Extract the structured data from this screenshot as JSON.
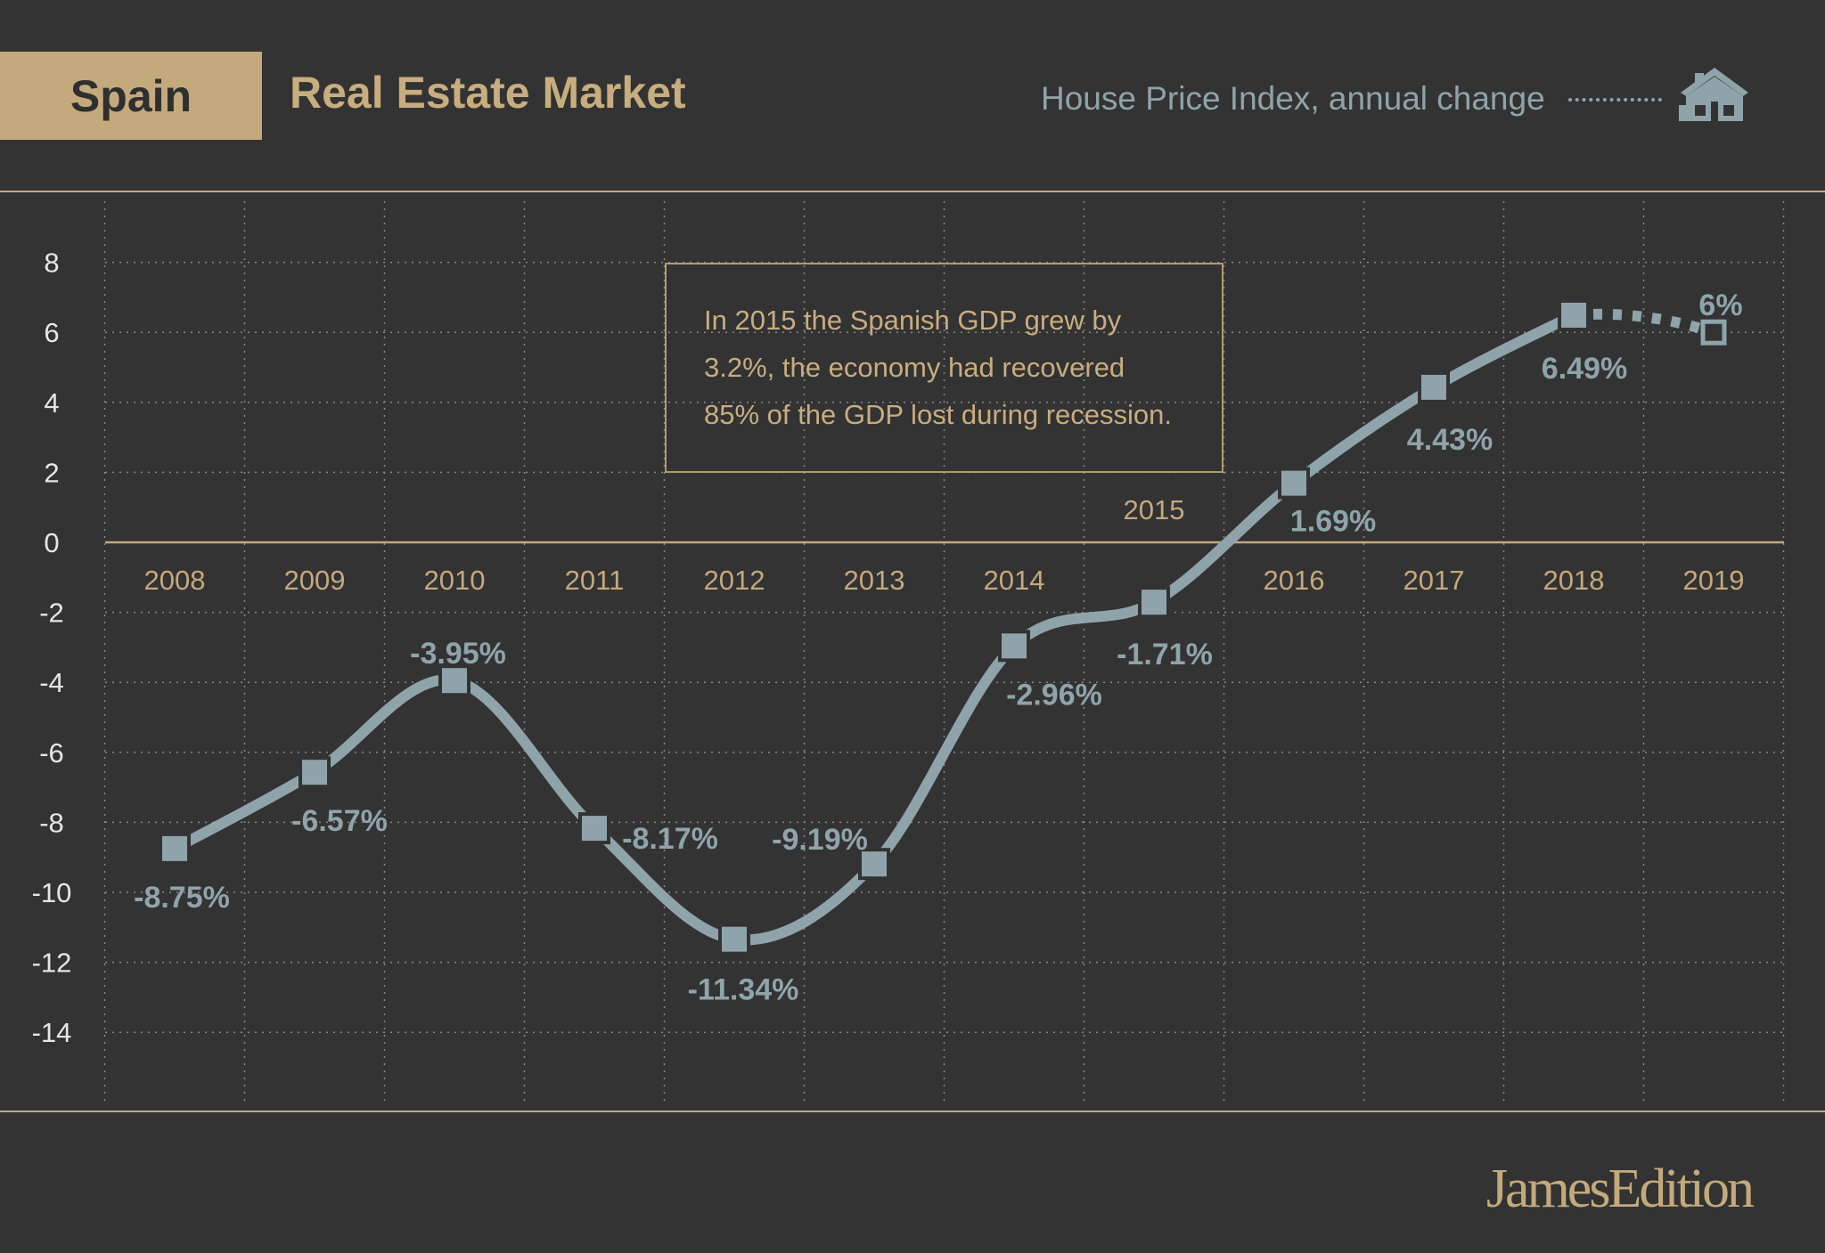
{
  "header": {
    "country": "Spain",
    "title": "Real Estate Market",
    "subtitle": "House Price Index, annual change",
    "icon": "house-icon"
  },
  "annotation": {
    "lines": [
      "In 2015 the Spanish GDP grew by",
      "3.2%, the economy had recovered",
      "85% of the GDP lost during recession."
    ]
  },
  "brand": "JamesEdition",
  "colors": {
    "background": "#333333",
    "gold": "#c4a97c",
    "line": "#8fa4aa",
    "grid": "#8a8a8a"
  },
  "chart_data": {
    "type": "line",
    "title": "House Price Index, annual change",
    "xlabel": "",
    "ylabel": "",
    "ylim": [
      -16,
      10
    ],
    "yticks": [
      8,
      6,
      4,
      2,
      0,
      -2,
      -4,
      -6,
      -8,
      -10,
      -12,
      -14
    ],
    "categories": [
      "2008",
      "2009",
      "2010",
      "2011",
      "2012",
      "2013",
      "2014",
      "2015",
      "2016",
      "2017",
      "2018",
      "2019"
    ],
    "series": [
      {
        "name": "House Price Index annual change (%)",
        "values": [
          -8.75,
          -6.57,
          -3.95,
          -8.17,
          -11.34,
          -9.19,
          -2.96,
          -1.71,
          1.69,
          4.43,
          6.49,
          6
        ],
        "labels": [
          "-8.75%",
          "-6.57%",
          "-3.95%",
          "-8.17%",
          "-11.34%",
          "-9.19%",
          "-2.96%",
          "-1.71%",
          "1.69%",
          "4.43%",
          "6.49%",
          "6%"
        ],
        "forecast_from_index": 10
      }
    ]
  }
}
